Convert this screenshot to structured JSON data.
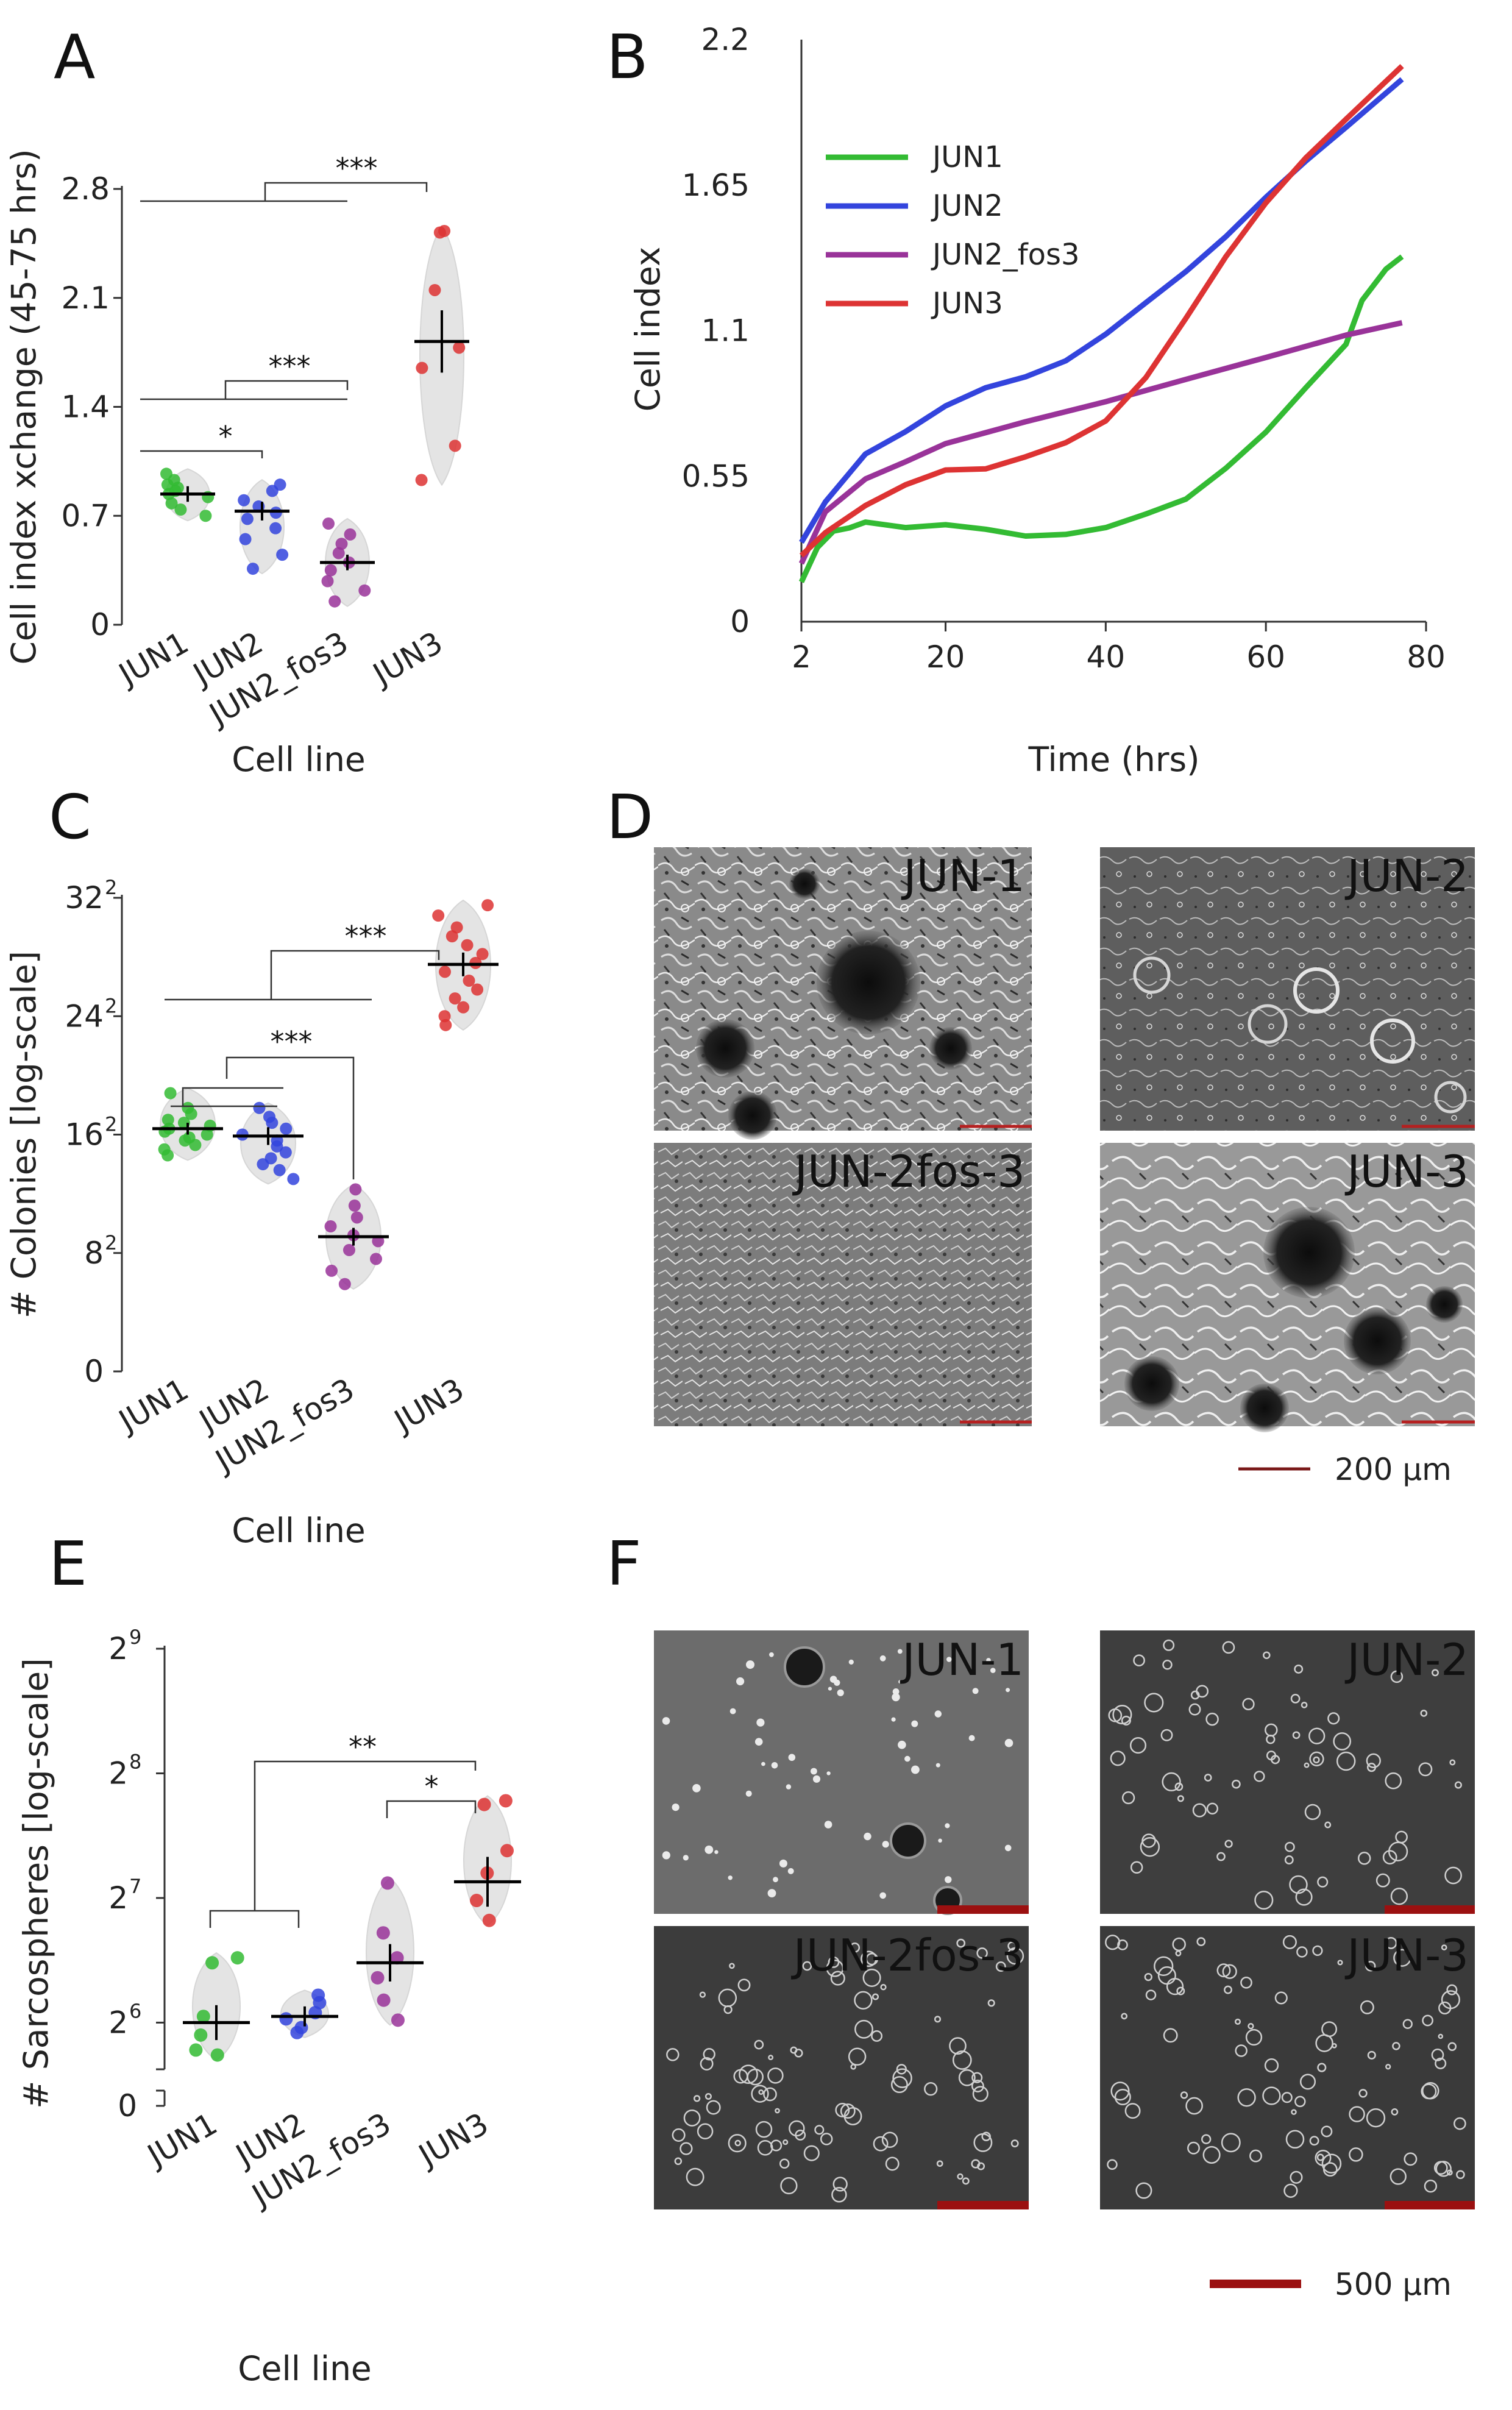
{
  "colors": {
    "JUN1": "#33bb33",
    "JUN2": "#3344dd",
    "JUN2_fos3": "#993399",
    "JUN3": "#dd3333",
    "violin": "#e4e4e4",
    "scalebar_d": "#7a1818",
    "scalebar_f": "#9b1010"
  },
  "chart_data": [
    {
      "panel": "A",
      "type": "scatter",
      "ylabel": "Cell index xchange (45-75 hrs)",
      "xlabel": "Cell line",
      "categories": [
        "JUN1",
        "JUN2",
        "JUN2_fos3",
        "JUN3"
      ],
      "yticks": [
        "0",
        "0.7",
        "1.4",
        "2.1",
        "2.8"
      ],
      "ylim": [
        0,
        2.8
      ],
      "means": [
        0.84,
        0.73,
        0.4,
        1.82
      ],
      "errors": [
        0.05,
        0.06,
        0.05,
        0.2
      ],
      "points": [
        [
          0.97,
          0.93,
          0.9,
          0.88,
          0.86,
          0.84,
          0.82,
          0.78,
          0.74,
          0.7
        ],
        [
          0.9,
          0.86,
          0.8,
          0.76,
          0.72,
          0.68,
          0.62,
          0.55,
          0.45,
          0.36
        ],
        [
          0.65,
          0.58,
          0.52,
          0.46,
          0.4,
          0.35,
          0.28,
          0.22,
          0.15
        ],
        [
          2.53,
          2.52,
          2.15,
          1.78,
          1.65,
          1.15,
          0.93
        ]
      ],
      "brackets": [
        {
          "from": 0,
          "to": 1,
          "label": "*"
        },
        {
          "from": 0,
          "to": 2,
          "label": "***"
        },
        {
          "from": 0,
          "to": 3,
          "label": "***"
        }
      ]
    },
    {
      "panel": "B",
      "type": "line",
      "ylabel": "Cell index",
      "xlabel": "Time (hrs)",
      "xticks": [
        "2",
        "20",
        "40",
        "60",
        "80"
      ],
      "yticks": [
        "0",
        "0.55",
        "1.1",
        "1.65",
        "2.2"
      ],
      "xlim": [
        2,
        80
      ],
      "ylim": [
        0,
        2.2
      ],
      "series": [
        {
          "name": "JUN1",
          "x": [
            2,
            4,
            6,
            8,
            10,
            15,
            20,
            25,
            30,
            35,
            40,
            45,
            50,
            55,
            60,
            65,
            70,
            72,
            75,
            77
          ],
          "y": [
            0.15,
            0.28,
            0.34,
            0.36,
            0.37,
            0.36,
            0.36,
            0.35,
            0.32,
            0.33,
            0.36,
            0.41,
            0.47,
            0.58,
            0.72,
            0.88,
            1.05,
            1.22,
            1.33,
            1.38
          ]
        },
        {
          "name": "JUN2",
          "x": [
            2,
            5,
            10,
            15,
            20,
            25,
            30,
            35,
            40,
            45,
            50,
            55,
            60,
            65,
            70,
            77
          ],
          "y": [
            0.3,
            0.45,
            0.64,
            0.72,
            0.81,
            0.88,
            0.93,
            0.99,
            1.08,
            1.2,
            1.32,
            1.46,
            1.6,
            1.74,
            1.87,
            2.05
          ]
        },
        {
          "name": "JUN2_fos3",
          "x": [
            2,
            5,
            10,
            15,
            20,
            25,
            30,
            40,
            50,
            60,
            70,
            77
          ],
          "y": [
            0.22,
            0.42,
            0.54,
            0.61,
            0.67,
            0.71,
            0.75,
            0.83,
            0.91,
            1.0,
            1.08,
            1.13
          ]
        },
        {
          "name": "JUN3",
          "x": [
            2,
            5,
            10,
            15,
            20,
            25,
            30,
            35,
            40,
            45,
            50,
            55,
            60,
            65,
            70,
            77
          ],
          "y": [
            0.25,
            0.34,
            0.44,
            0.52,
            0.58,
            0.58,
            0.62,
            0.68,
            0.76,
            0.92,
            1.15,
            1.38,
            1.58,
            1.75,
            1.9,
            2.1
          ]
        }
      ]
    },
    {
      "panel": "C",
      "type": "scatter",
      "ylabel": "# Colonies [log-scale]",
      "xlabel": "Cell line",
      "categories": [
        "JUN1",
        "JUN2",
        "JUN2_fos3",
        "JUN3"
      ],
      "yticks_base": [
        "0",
        "8",
        "16",
        "24",
        "32"
      ],
      "ytick_exponent": "2",
      "ylim": [
        0,
        32
      ],
      "means": [
        16.4,
        15.9,
        9.1,
        27.5
      ],
      "errors": [
        0.4,
        0.6,
        0.6,
        0.8
      ],
      "points": [
        [
          18.8,
          17.8,
          17.4,
          17.0,
          16.8,
          16.6,
          16.4,
          16.2,
          16.0,
          15.8,
          15.6,
          15.3,
          15.0,
          14.6
        ],
        [
          17.8,
          17.2,
          16.8,
          16.4,
          16.0,
          15.6,
          15.2,
          14.8,
          14.4,
          14.0,
          13.6,
          13.0
        ],
        [
          12.3,
          11.2,
          10.4,
          9.8,
          9.2,
          8.8,
          8.2,
          7.6,
          6.8,
          5.9
        ],
        [
          31.5,
          30.8,
          30.0,
          29.4,
          28.8,
          28.2,
          27.6,
          27.0,
          26.4,
          25.8,
          25.2,
          24.6,
          24.0,
          23.4
        ]
      ],
      "brackets": [
        {
          "from": 0,
          "to": 1,
          "label": ""
        },
        {
          "from": 0,
          "to": 2,
          "label": "***"
        },
        {
          "from": 0,
          "to": 3,
          "label": "***"
        }
      ]
    },
    {
      "panel": "E",
      "type": "scatter",
      "ylabel": "# Sarcospheres [log-scale]",
      "xlabel": "Cell line",
      "categories": [
        "JUN1",
        "JUN2",
        "JUN2_fos3",
        "JUN3"
      ],
      "ytick_base": "2",
      "ytick_exponents": [
        "6",
        "7",
        "8",
        "9"
      ],
      "ytick_zero": "0",
      "ylim_log2": [
        5.65,
        9
      ],
      "means": [
        6.0,
        6.05,
        6.48,
        7.13
      ],
      "errors": [
        0.14,
        0.08,
        0.15,
        0.2
      ],
      "points": [
        [
          6.52,
          6.48,
          6.05,
          5.9,
          5.78,
          5.74
        ],
        [
          6.22,
          6.16,
          6.08,
          6.03,
          5.96,
          5.92
        ],
        [
          7.12,
          6.72,
          6.52,
          6.36,
          6.18,
          6.02
        ],
        [
          7.78,
          7.75,
          7.38,
          7.2,
          6.98,
          6.82
        ]
      ],
      "brackets": [
        {
          "from": 0,
          "to": 1,
          "label": ""
        },
        {
          "from": 0,
          "to": 3,
          "label": "**"
        },
        {
          "from": 2,
          "to": 3,
          "label": "*"
        }
      ]
    }
  ],
  "panels": {
    "A": "A",
    "B": "B",
    "C": "C",
    "D": "D",
    "E": "E",
    "F": "F"
  },
  "images": {
    "D": [
      "JUN-1",
      "JUN-2",
      "JUN-2fos-3",
      "JUN-3"
    ],
    "F": [
      "JUN-1",
      "JUN-2",
      "JUN-2fos-3",
      "JUN-3"
    ]
  },
  "scalebars": {
    "D": "200 µm",
    "F": "500 µm"
  }
}
